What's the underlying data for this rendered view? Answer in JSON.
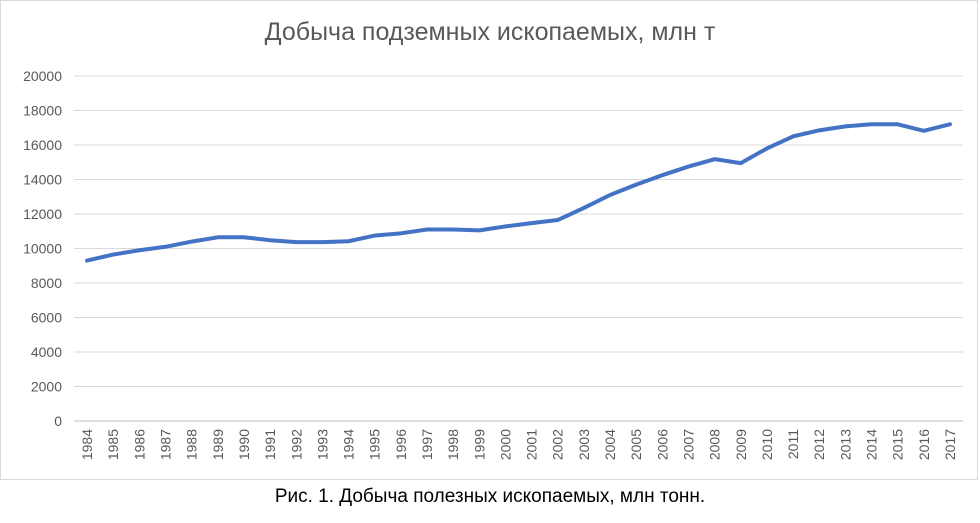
{
  "chart_data": {
    "type": "line",
    "title": "Добыча подземных ископаемых, млн т",
    "xlabel": "",
    "ylabel": "",
    "x": [
      "1984",
      "1985",
      "1986",
      "1987",
      "1988",
      "1989",
      "1990",
      "1991",
      "1992",
      "1993",
      "1994",
      "1995",
      "1996",
      "1997",
      "1998",
      "1999",
      "2000",
      "2001",
      "2002",
      "2003",
      "2004",
      "2005",
      "2006",
      "2007",
      "2008",
      "2009",
      "2010",
      "2011",
      "2012",
      "2013",
      "2014",
      "2015",
      "2016",
      "2017"
    ],
    "series": [
      {
        "name": "",
        "color": "#4472c4",
        "values": [
          9300,
          9650,
          9900,
          10100,
          10400,
          10650,
          10650,
          10480,
          10370,
          10370,
          10420,
          10750,
          10880,
          11100,
          11100,
          11050,
          11280,
          11470,
          11650,
          12350,
          13100,
          13700,
          14250,
          14750,
          15180,
          14950,
          15800,
          16500,
          16850,
          17080,
          17200,
          17200,
          16820,
          17200
        ]
      }
    ],
    "ylim": [
      0,
      20000
    ],
    "yticks": [
      "0",
      "2000",
      "4000",
      "6000",
      "8000",
      "10000",
      "12000",
      "14000",
      "16000",
      "18000",
      "20000"
    ],
    "grid": true,
    "legend": "none"
  },
  "caption": "Рис. 1. Добыча полезных ископаемых, млн тонн."
}
